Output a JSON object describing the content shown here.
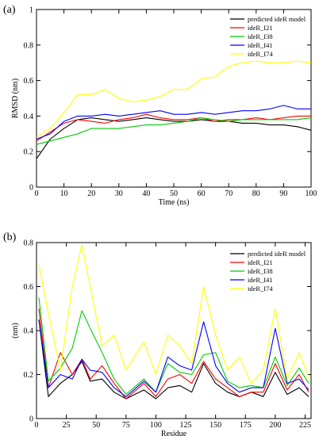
{
  "chart_data": [
    {
      "panel_label": "(a)",
      "type": "line",
      "xlabel": "Time (ns)",
      "ylabel": "RMSD (nm)",
      "xlim": [
        0,
        100
      ],
      "ylim": [
        0,
        1
      ],
      "xticks": [
        0,
        10,
        20,
        30,
        40,
        50,
        60,
        70,
        80,
        90,
        100
      ],
      "yticks": [
        0,
        0.2,
        0.4,
        0.6,
        0.8,
        1
      ],
      "ytick_labels": [
        "0",
        "0.2",
        "0.4",
        "0.6",
        "0.8",
        "1"
      ],
      "legend_position": "top-right",
      "x": [
        0,
        5,
        10,
        15,
        20,
        25,
        30,
        35,
        40,
        45,
        50,
        55,
        60,
        65,
        70,
        75,
        80,
        85,
        90,
        95,
        100
      ],
      "series": [
        {
          "name": "predicted ideR model",
          "color": "#000000",
          "values": [
            0.16,
            0.27,
            0.33,
            0.38,
            0.39,
            0.38,
            0.37,
            0.38,
            0.39,
            0.38,
            0.37,
            0.37,
            0.38,
            0.37,
            0.37,
            0.36,
            0.36,
            0.35,
            0.35,
            0.34,
            0.32
          ]
        },
        {
          "name": "ideR_I21",
          "color": "#ff0000",
          "values": [
            0.26,
            0.31,
            0.36,
            0.38,
            0.37,
            0.36,
            0.38,
            0.39,
            0.41,
            0.39,
            0.38,
            0.38,
            0.39,
            0.37,
            0.38,
            0.38,
            0.39,
            0.38,
            0.39,
            0.4,
            0.4
          ]
        },
        {
          "name": "ideR_I38",
          "color": "#00cc00",
          "values": [
            0.24,
            0.26,
            0.28,
            0.3,
            0.33,
            0.33,
            0.33,
            0.34,
            0.35,
            0.35,
            0.36,
            0.37,
            0.39,
            0.38,
            0.37,
            0.38,
            0.38,
            0.38,
            0.38,
            0.38,
            0.39
          ]
        },
        {
          "name": "ideR_I41",
          "color": "#0000ff",
          "values": [
            0.27,
            0.3,
            0.37,
            0.4,
            0.4,
            0.41,
            0.4,
            0.41,
            0.42,
            0.43,
            0.41,
            0.41,
            0.42,
            0.41,
            0.42,
            0.43,
            0.43,
            0.44,
            0.46,
            0.44,
            0.44
          ]
        },
        {
          "name": "ideR_I74",
          "color": "#ffff00",
          "values": [
            0.28,
            0.33,
            0.42,
            0.52,
            0.52,
            0.55,
            0.5,
            0.48,
            0.49,
            0.51,
            0.55,
            0.55,
            0.61,
            0.62,
            0.68,
            0.7,
            0.71,
            0.7,
            0.7,
            0.71,
            0.7
          ]
        }
      ]
    },
    {
      "panel_label": "(b)",
      "type": "line",
      "xlabel": "Residue",
      "ylabel": "(nm)",
      "xlim": [
        0,
        230
      ],
      "ylim": [
        0,
        0.8
      ],
      "xticks": [
        0,
        25,
        50,
        75,
        100,
        125,
        150,
        175,
        200,
        225
      ],
      "yticks": [
        0,
        0.2,
        0.4,
        0.6,
        0.8
      ],
      "ytick_labels": [
        "0",
        "0.2",
        "0.4",
        "0.6",
        "0.8"
      ],
      "legend_position": "top-right",
      "x": [
        2,
        10,
        20,
        30,
        38,
        45,
        55,
        65,
        75,
        90,
        100,
        110,
        120,
        130,
        140,
        150,
        160,
        170,
        180,
        190,
        200,
        210,
        220,
        228
      ],
      "series": [
        {
          "name": "predicted ideR model",
          "color": "#000000",
          "values": [
            0.45,
            0.1,
            0.16,
            0.2,
            0.26,
            0.17,
            0.18,
            0.12,
            0.09,
            0.13,
            0.09,
            0.14,
            0.15,
            0.12,
            0.25,
            0.16,
            0.12,
            0.1,
            0.12,
            0.1,
            0.21,
            0.11,
            0.14,
            0.1
          ]
        },
        {
          "name": "ideR_I21",
          "color": "#ff0000",
          "values": [
            0.5,
            0.14,
            0.3,
            0.2,
            0.27,
            0.18,
            0.24,
            0.16,
            0.09,
            0.16,
            0.1,
            0.18,
            0.2,
            0.16,
            0.26,
            0.18,
            0.14,
            0.1,
            0.12,
            0.12,
            0.25,
            0.13,
            0.2,
            0.12
          ]
        },
        {
          "name": "ideR_I38",
          "color": "#00cc00",
          "values": [
            0.55,
            0.17,
            0.23,
            0.32,
            0.49,
            0.41,
            0.3,
            0.18,
            0.11,
            0.18,
            0.12,
            0.25,
            0.21,
            0.2,
            0.29,
            0.3,
            0.17,
            0.14,
            0.15,
            0.14,
            0.28,
            0.15,
            0.23,
            0.16
          ]
        },
        {
          "name": "ideR_I41",
          "color": "#0000ff",
          "values": [
            0.45,
            0.14,
            0.2,
            0.18,
            0.27,
            0.22,
            0.21,
            0.14,
            0.1,
            0.17,
            0.12,
            0.28,
            0.24,
            0.22,
            0.44,
            0.24,
            0.16,
            0.12,
            0.14,
            0.14,
            0.41,
            0.16,
            0.18,
            0.13
          ]
        },
        {
          "name": "ideR_I74",
          "color": "#ffff00",
          "values": [
            0.7,
            0.48,
            0.22,
            0.6,
            0.79,
            0.6,
            0.33,
            0.38,
            0.22,
            0.35,
            0.2,
            0.38,
            0.33,
            0.25,
            0.6,
            0.38,
            0.22,
            0.28,
            0.16,
            0.22,
            0.5,
            0.18,
            0.3,
            0.19
          ]
        }
      ]
    }
  ]
}
